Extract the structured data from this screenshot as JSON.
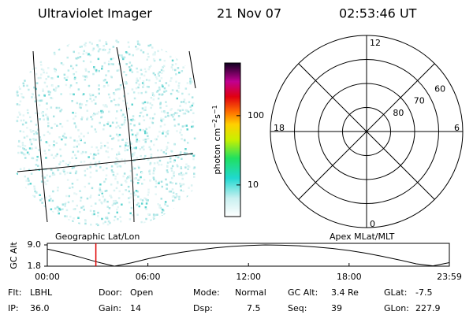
{
  "header": {
    "title": "Ultraviolet Imager",
    "date": "21 Nov 07",
    "time": "02:53:46 UT"
  },
  "image_panel": {
    "label": "Geographic Lat/Lon"
  },
  "chart_data": [
    {
      "type": "colorbar",
      "label_parts": [
        "photon cm",
        "−2",
        "s",
        "−1"
      ],
      "log": true,
      "ylim": [
        3.5,
        575
      ],
      "yticks": [
        10,
        100
      ]
    },
    {
      "type": "polar",
      "title": "Apex MLat/MLT",
      "rlim": [
        90,
        50
      ],
      "rticks": [
        60,
        70,
        80
      ],
      "theta_ticks": [
        12,
        18,
        6,
        0
      ]
    },
    {
      "type": "line",
      "ylabel": "GC Alt",
      "color": "#000000",
      "marker_color": "#e00000",
      "x": [
        0,
        1,
        2,
        3,
        4,
        5,
        6,
        7,
        8,
        9,
        10,
        11,
        12,
        13,
        14,
        15,
        16,
        17,
        18,
        19,
        20,
        21,
        22,
        23,
        23.98
      ],
      "values": [
        7.6,
        6.3,
        4.8,
        3.2,
        1.8,
        2.9,
        4.3,
        5.5,
        6.5,
        7.3,
        8.0,
        8.5,
        8.8,
        9.0,
        8.9,
        8.7,
        8.3,
        7.8,
        7.1,
        6.2,
        5.1,
        3.9,
        2.6,
        1.9,
        3.0
      ],
      "marker_x": 2.896,
      "xlim": [
        0,
        23.98
      ],
      "xticks": [
        {
          "value": 0,
          "label": "00:00"
        },
        {
          "value": 6,
          "label": "06:00"
        },
        {
          "value": 12,
          "label": "12:00"
        },
        {
          "value": 18,
          "label": "18:00"
        },
        {
          "value": 23.98,
          "label": "23:59"
        }
      ],
      "ylim": [
        1.8,
        9.0
      ],
      "yticks": [
        {
          "value": 9.0,
          "label": "9.0"
        },
        {
          "value": 1.8,
          "label": "1.8"
        }
      ]
    }
  ],
  "info": [
    [
      {
        "key": "Flt:",
        "value": "LBHL"
      },
      {
        "key": "Door:",
        "value": "Open"
      },
      {
        "key": "Mode:",
        "value": "Normal"
      },
      {
        "key": "GC Alt:",
        "value": "3.4 Re"
      },
      {
        "key": "GLat:",
        "value": "-7.5"
      }
    ],
    [
      {
        "key": "IP:",
        "value": "36.0"
      },
      {
        "key": "Gain:",
        "value": "14"
      },
      {
        "key": "Dsp:",
        "value": "7.5"
      },
      {
        "key": "Seq:",
        "value": "39"
      },
      {
        "key": "GLon:",
        "value": "227.9"
      }
    ]
  ]
}
